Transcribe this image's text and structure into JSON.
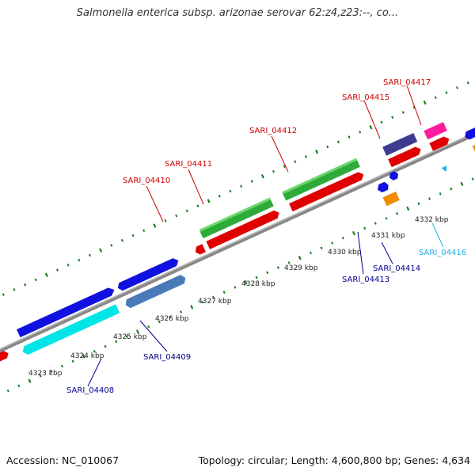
{
  "title": "Salmonella enterica subsp. arizonae serovar 62:z4,z23:--, co...",
  "footer": {
    "accession": "Accession: NC_010067",
    "summary": "Topology: circular; Length: 4,600,800 bp; Genes: 4,634"
  },
  "ticks": [
    "4323 kbp",
    "4324 kbp",
    "4325 kbp",
    "4326 kbp",
    "4327 kbp",
    "4328 kbp",
    "4329 kbp",
    "4330 kbp",
    "4331 kbp",
    "4332 kbp"
  ],
  "genes": [
    {
      "id": "SARI_04408",
      "color": "#00008b"
    },
    {
      "id": "SARI_04409",
      "color": "#00008b"
    },
    {
      "id": "SARI_04410",
      "color": "#cc0000"
    },
    {
      "id": "SARI_04411",
      "color": "#cc0000"
    },
    {
      "id": "SARI_04412",
      "color": "#cc0000"
    },
    {
      "id": "SARI_04413",
      "color": "#00008b"
    },
    {
      "id": "SARI_04414",
      "color": "#00008b"
    },
    {
      "id": "SARI_04415",
      "color": "#cc0000"
    },
    {
      "id": "SARI_04416",
      "color": "#1ab0e8"
    },
    {
      "id": "SARI_04417",
      "color": "#cc0000"
    }
  ]
}
